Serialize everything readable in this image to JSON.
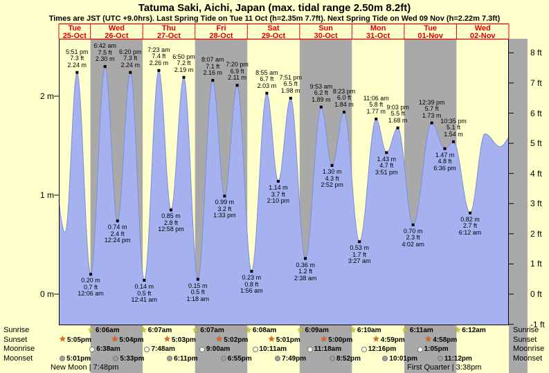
{
  "title": "Tatuma Saki, Aichi, Japan (max. tidal range 2.50m 8.2ft)",
  "subtitle": "Times are JST (UTC +9.0hrs). Last Spring Tide on Tue 11 Oct (h=2.35m 7.7ft). Next Spring Tide on Wed 09 Nov (h=2.22m 7.3ft)",
  "day_headers": [
    {
      "name": "Tue",
      "date": "25-Oct"
    },
    {
      "name": "Wed",
      "date": "26-Oct"
    },
    {
      "name": "Thu",
      "date": "27-Oct"
    },
    {
      "name": "Fri",
      "date": "28-Oct"
    },
    {
      "name": "Sat",
      "date": "29-Oct"
    },
    {
      "name": "Sun",
      "date": "30-Oct"
    },
    {
      "name": "Mon",
      "date": "31-Oct"
    },
    {
      "name": "Tue",
      "date": "01-Nov"
    },
    {
      "name": "Wed",
      "date": "02-Nov"
    }
  ],
  "chart_data": {
    "type": "area",
    "series_name": "Tide height",
    "x_categories": [
      "Tue 25-Oct",
      "Wed 26-Oct",
      "Thu 27-Oct",
      "Fri 28-Oct",
      "Sat 29-Oct",
      "Sun 30-Oct",
      "Mon 31-Oct",
      "Tue 01-Nov",
      "Wed 02-Nov"
    ],
    "y_left_ticks_m": [
      0,
      1,
      2
    ],
    "y_right_ticks_ft": [
      8,
      7,
      6,
      5,
      4,
      3,
      2,
      1,
      0,
      -1
    ],
    "ylim_m": [
      -0.3,
      2.58
    ],
    "grid": false,
    "legend": false,
    "tide_events": [
      {
        "day": "Tue 25-Oct",
        "type": "high",
        "time": "5:51 pm",
        "ft": 7.3,
        "m": 2.24,
        "t": 17.85
      },
      {
        "day": "Wed 26-Oct",
        "type": "low",
        "time": "12:06 am",
        "ft": 0.7,
        "m": 0.2,
        "t": 24.1
      },
      {
        "day": "Wed 26-Oct",
        "type": "high",
        "time": "6:42 am",
        "ft": 7.5,
        "m": 2.3,
        "t": 30.7
      },
      {
        "day": "Wed 26-Oct",
        "type": "low",
        "time": "12:24 pm",
        "ft": 2.4,
        "m": 0.74,
        "t": 36.4
      },
      {
        "day": "Wed 26-Oct",
        "type": "high",
        "time": "6:20 pm",
        "ft": 7.3,
        "m": 2.24,
        "t": 42.33
      },
      {
        "day": "Thu 27-Oct",
        "type": "low",
        "time": "12:41 am",
        "ft": 0.5,
        "m": 0.14,
        "t": 48.68
      },
      {
        "day": "Thu 27-Oct",
        "type": "high",
        "time": "7:23 am",
        "ft": 7.4,
        "m": 2.26,
        "t": 55.38
      },
      {
        "day": "Thu 27-Oct",
        "type": "low",
        "time": "12:58 pm",
        "ft": 2.8,
        "m": 0.85,
        "t": 60.97
      },
      {
        "day": "Thu 27-Oct",
        "type": "high",
        "time": "6:50 pm",
        "ft": 7.2,
        "m": 2.19,
        "t": 66.83
      },
      {
        "day": "Fri 28-Oct",
        "type": "low",
        "time": "1:18 am",
        "ft": 0.5,
        "m": 0.15,
        "t": 73.3
      },
      {
        "day": "Fri 28-Oct",
        "type": "high",
        "time": "8:07 am",
        "ft": 7.1,
        "m": 2.16,
        "t": 80.12
      },
      {
        "day": "Fri 28-Oct",
        "type": "low",
        "time": "1:33 pm",
        "ft": 3.2,
        "m": 0.99,
        "t": 85.55
      },
      {
        "day": "Fri 28-Oct",
        "type": "high",
        "time": "7:20 pm",
        "ft": 6.9,
        "m": 2.11,
        "t": 91.33
      },
      {
        "day": "Sat 29-Oct",
        "type": "low",
        "time": "1:56 am",
        "ft": 0.8,
        "m": 0.23,
        "t": 97.93
      },
      {
        "day": "Sat 29-Oct",
        "type": "high",
        "time": "8:55 am",
        "ft": 6.7,
        "m": 2.03,
        "t": 104.92
      },
      {
        "day": "Sat 29-Oct",
        "type": "low",
        "time": "2:10 pm",
        "ft": 3.7,
        "m": 1.14,
        "t": 110.17
      },
      {
        "day": "Sat 29-Oct",
        "type": "high",
        "time": "7:51 pm",
        "ft": 6.5,
        "m": 1.98,
        "t": 115.85
      },
      {
        "day": "Sun 30-Oct",
        "type": "low",
        "time": "2:38 am",
        "ft": 1.2,
        "m": 0.36,
        "t": 122.63
      },
      {
        "day": "Sun 30-Oct",
        "type": "high",
        "time": "9:53 am",
        "ft": 6.2,
        "m": 1.89,
        "t": 129.88
      },
      {
        "day": "Sun 30-Oct",
        "type": "low",
        "time": "2:52 pm",
        "ft": 4.3,
        "m": 1.3,
        "t": 134.87
      },
      {
        "day": "Sun 30-Oct",
        "type": "high",
        "time": "8:23 pm",
        "ft": 6.0,
        "m": 1.84,
        "t": 140.38
      },
      {
        "day": "Mon 31-Oct",
        "type": "low",
        "time": "3:27 am",
        "ft": 1.7,
        "m": 0.53,
        "t": 147.45
      },
      {
        "day": "Mon 31-Oct",
        "type": "high",
        "time": "11:06 am",
        "ft": 5.8,
        "m": 1.77,
        "t": 155.1
      },
      {
        "day": "Mon 31-Oct",
        "type": "low",
        "time": "3:51 pm",
        "ft": 4.7,
        "m": 1.43,
        "t": 159.85
      },
      {
        "day": "Mon 31-Oct",
        "type": "high",
        "time": "9:03 pm",
        "ft": 5.5,
        "m": 1.68,
        "t": 165.05
      },
      {
        "day": "Tue 01-Nov",
        "type": "low",
        "time": "4:02 am",
        "ft": 2.3,
        "m": 0.7,
        "t": 172.03
      },
      {
        "day": "Tue 01-Nov",
        "type": "high",
        "time": "12:39 pm",
        "ft": 5.7,
        "m": 1.73,
        "t": 180.65
      },
      {
        "day": "Tue 01-Nov",
        "type": "low",
        "time": "6:36 pm",
        "ft": 4.8,
        "m": 1.47,
        "t": 186.6
      },
      {
        "day": "Tue 01-Nov",
        "type": "high",
        "time": "10:35 pm",
        "ft": 5.1,
        "m": 1.54,
        "t": 190.58
      },
      {
        "day": "Wed 02-Nov",
        "type": "low",
        "time": "6:12 am",
        "ft": 2.7,
        "m": 0.82,
        "t": 198.2
      }
    ]
  },
  "astro": {
    "row_labels": [
      "Sunrise",
      "Sunset",
      "Moonrise",
      "Moonset"
    ],
    "sunrise": [
      {
        "time": "6:06am",
        "t": 30.1
      },
      {
        "time": "6:07am",
        "t": 54.12
      },
      {
        "time": "6:07am",
        "t": 78.12
      },
      {
        "time": "6:08am",
        "t": 102.13
      },
      {
        "time": "6:09am",
        "t": 126.15
      },
      {
        "time": "6:10am",
        "t": 150.17
      },
      {
        "time": "6:11am",
        "t": 174.18
      },
      {
        "time": "6:12am",
        "t": 198.2
      }
    ],
    "sunset": [
      {
        "time": "5:05pm",
        "t": 17.08
      },
      {
        "time": "5:04pm",
        "t": 41.07
      },
      {
        "time": "5:03pm",
        "t": 65.05
      },
      {
        "time": "5:02pm",
        "t": 89.03
      },
      {
        "time": "5:01pm",
        "t": 113.02
      },
      {
        "time": "5:00pm",
        "t": 137.0
      },
      {
        "time": "4:59pm",
        "t": 160.98
      },
      {
        "time": "4:58pm",
        "t": 184.97
      }
    ],
    "moonrise": [
      {
        "time": "6:38am",
        "t": 30.63
      },
      {
        "time": "7:48am",
        "t": 55.8
      },
      {
        "time": "9:00am",
        "t": 81.0
      },
      {
        "time": "10:11am",
        "t": 106.18
      },
      {
        "time": "11:18am",
        "t": 131.3
      },
      {
        "time": "12:16pm",
        "t": 156.27
      },
      {
        "time": "1:05pm",
        "t": 181.08
      }
    ],
    "moonset": [
      {
        "time": "5:01pm",
        "t": 17.02
      },
      {
        "time": "5:33pm",
        "t": 41.55
      },
      {
        "time": "6:11pm",
        "t": 66.18
      },
      {
        "time": "6:55pm",
        "t": 90.92
      },
      {
        "time": "7:49pm",
        "t": 115.82
      },
      {
        "time": "8:52pm",
        "t": 140.87
      },
      {
        "time": "10:01pm",
        "t": 166.02
      },
      {
        "time": "11:12pm",
        "t": 191.2
      }
    ],
    "new_moon": "New Moon | 7:48pm",
    "first_quarter": "First Quarter | 3:38pm"
  },
  "colors": {
    "background": "#ffffcc",
    "band_gray": "#a9a9a9",
    "tide_fill": "#a6b2ef",
    "tide_stroke": "#7b8edb",
    "header_red": "#dd0000",
    "sunrise_star": "#c9c937",
    "sunset_star": "#e86410",
    "moonrise_fill": "#ffffe8",
    "moonset_fill": "#a0a0a0",
    "marker_black": "#000000"
  }
}
